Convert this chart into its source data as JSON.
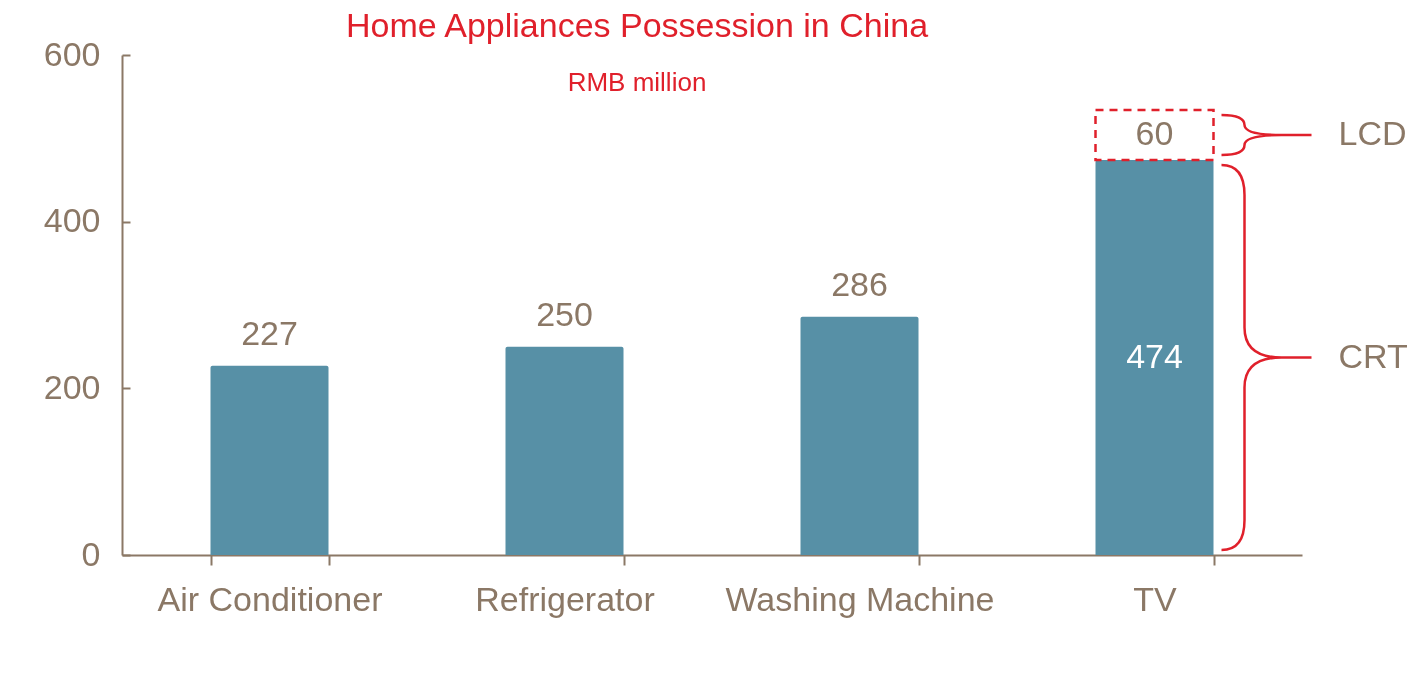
{
  "chart_data": {
    "type": "bar",
    "title": "Home Appliances Possession in China",
    "subtitle": "RMB million",
    "categories": [
      "Air Conditioner",
      "Refrigerator",
      "Washing Machine",
      "TV"
    ],
    "stacked": true,
    "series": [
      {
        "name": "CRT",
        "color": "#5790a6",
        "values": [
          227,
          250,
          286,
          474
        ]
      },
      {
        "name": "LCD",
        "color": "#e0202b",
        "line_style": "dashed",
        "values": [
          null,
          null,
          null,
          60
        ]
      }
    ],
    "ylim": [
      0,
      600
    ],
    "yticks": [
      0,
      200,
      400,
      600
    ],
    "data_labels": true,
    "grid": false
  }
}
